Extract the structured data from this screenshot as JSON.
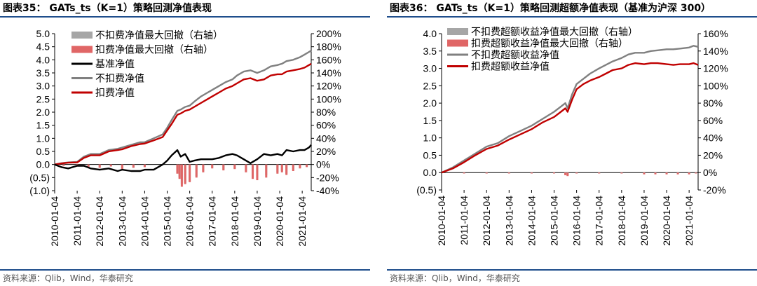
{
  "source": "资料来源：Qlib，Wind，华泰研究",
  "chart_data": [
    {
      "type": "line",
      "title": "图表35：  GATs_ts（K=1）策略回测净值表现",
      "x_ticks": [
        "2010-01-04",
        "2011-01-04",
        "2012-01-04",
        "2013-01-04",
        "2014-01-04",
        "2015-01-04",
        "2016-01-04",
        "2017-01-04",
        "2018-01-04",
        "2019-01-04",
        "2020-01-04",
        "2021-01-04"
      ],
      "x_range": [
        2010.0,
        2021.4
      ],
      "left_axis": {
        "range": [
          -1.0,
          5.0
        ],
        "ticks": [
          "(1.0)",
          "(0.5)",
          "0.0",
          "0.5",
          "1.0",
          "1.5",
          "2.0",
          "2.5",
          "3.0",
          "3.5",
          "4.0",
          "4.5",
          "5.0"
        ],
        "tick_values": [
          -1.0,
          -0.5,
          0.0,
          0.5,
          1.0,
          1.5,
          2.0,
          2.5,
          3.0,
          3.5,
          4.0,
          4.5,
          5.0
        ]
      },
      "right_axis": {
        "range": [
          -0.4,
          2.0
        ],
        "ticks": [
          "-40%",
          "-20%",
          "0%",
          "20%",
          "40%",
          "60%",
          "80%",
          "100%",
          "120%",
          "140%",
          "160%",
          "180%",
          "200%"
        ],
        "tick_values": [
          -0.4,
          -0.2,
          0.0,
          0.2,
          0.4,
          0.6,
          0.8,
          1.0,
          1.2,
          1.4,
          1.6,
          1.8,
          2.0
        ]
      },
      "legend": [
        "不扣费净值最大回撤（右轴）",
        "扣费净值最大回撤（右轴）",
        "基准净值",
        "不扣费净值",
        "扣费净值"
      ],
      "series": [
        {
          "name": "不扣费净值",
          "axis": "left",
          "color": "#808080",
          "x": [
            2010.0,
            2010.3,
            2010.6,
            2011.0,
            2011.3,
            2011.6,
            2012.0,
            2012.4,
            2012.8,
            2013.0,
            2013.4,
            2013.8,
            2014.0,
            2014.4,
            2014.8,
            2015.0,
            2015.2,
            2015.45,
            2015.6,
            2015.8,
            2016.0,
            2016.2,
            2016.5,
            2016.8,
            2017.0,
            2017.3,
            2017.6,
            2017.9,
            2018.1,
            2018.4,
            2018.7,
            2019.0,
            2019.3,
            2019.6,
            2019.9,
            2020.1,
            2020.3,
            2020.6,
            2020.9,
            2021.1,
            2021.3,
            2021.4
          ],
          "y": [
            0.0,
            0.05,
            0.08,
            0.1,
            0.3,
            0.4,
            0.4,
            0.55,
            0.6,
            0.65,
            0.75,
            0.85,
            0.85,
            1.0,
            1.15,
            1.4,
            1.7,
            2.05,
            2.1,
            2.2,
            2.25,
            2.4,
            2.6,
            2.75,
            2.85,
            3.0,
            3.15,
            3.25,
            3.4,
            3.55,
            3.6,
            3.5,
            3.6,
            3.75,
            3.8,
            3.85,
            3.95,
            4.0,
            4.1,
            4.2,
            4.3,
            4.35
          ]
        },
        {
          "name": "扣费净值",
          "axis": "left",
          "color": "#c00000",
          "x": [
            2010.0,
            2010.3,
            2010.6,
            2011.0,
            2011.3,
            2011.6,
            2012.0,
            2012.4,
            2012.8,
            2013.0,
            2013.4,
            2013.8,
            2014.0,
            2014.4,
            2014.8,
            2015.0,
            2015.2,
            2015.45,
            2015.6,
            2015.8,
            2016.0,
            2016.2,
            2016.5,
            2016.8,
            2017.0,
            2017.3,
            2017.6,
            2017.9,
            2018.1,
            2018.4,
            2018.7,
            2019.0,
            2019.3,
            2019.6,
            2019.9,
            2020.1,
            2020.3,
            2020.6,
            2020.9,
            2021.1,
            2021.3,
            2021.4
          ],
          "y": [
            0.0,
            0.04,
            0.07,
            0.08,
            0.25,
            0.35,
            0.35,
            0.5,
            0.55,
            0.58,
            0.7,
            0.78,
            0.8,
            0.92,
            1.05,
            1.3,
            1.55,
            1.9,
            1.95,
            2.05,
            2.1,
            2.2,
            2.35,
            2.5,
            2.6,
            2.75,
            2.9,
            3.0,
            3.1,
            3.25,
            3.3,
            3.2,
            3.25,
            3.4,
            3.45,
            3.45,
            3.55,
            3.6,
            3.65,
            3.7,
            3.8,
            3.85
          ]
        },
        {
          "name": "基准净值",
          "axis": "left",
          "color": "#000000",
          "x": [
            2010.0,
            2010.3,
            2010.6,
            2011.0,
            2011.3,
            2011.6,
            2012.0,
            2012.4,
            2012.8,
            2013.0,
            2013.4,
            2013.8,
            2014.0,
            2014.4,
            2014.8,
            2015.0,
            2015.2,
            2015.45,
            2015.6,
            2015.8,
            2016.0,
            2016.2,
            2016.5,
            2016.8,
            2017.0,
            2017.3,
            2017.6,
            2017.9,
            2018.1,
            2018.4,
            2018.7,
            2019.0,
            2019.3,
            2019.6,
            2019.9,
            2020.1,
            2020.3,
            2020.6,
            2020.9,
            2021.1,
            2021.3,
            2021.4
          ],
          "y": [
            0.0,
            -0.1,
            -0.15,
            -0.05,
            -0.05,
            -0.15,
            -0.2,
            -0.15,
            -0.25,
            -0.2,
            -0.25,
            -0.25,
            -0.2,
            -0.2,
            0.0,
            0.15,
            0.35,
            0.55,
            0.3,
            0.4,
            0.1,
            0.15,
            0.2,
            0.2,
            0.2,
            0.25,
            0.35,
            0.4,
            0.35,
            0.2,
            0.05,
            0.2,
            0.4,
            0.35,
            0.4,
            0.35,
            0.55,
            0.5,
            0.55,
            0.55,
            0.65,
            0.75
          ]
        },
        {
          "name": "不扣费净值最大回撤（右轴）",
          "axis": "right",
          "type": "bar",
          "color": "#a6a6a6",
          "x": [
            2010.4,
            2011.0,
            2011.5,
            2012.0,
            2012.5,
            2013.0,
            2013.5,
            2014.0,
            2015.45,
            2015.55,
            2015.65,
            2015.8,
            2016.0,
            2016.3,
            2016.6,
            2017.0,
            2017.5,
            2018.0,
            2018.5,
            2018.8,
            2019.0,
            2019.4,
            2019.9,
            2020.1,
            2020.3,
            2020.6,
            2020.9,
            2021.2
          ],
          "y": [
            -0.02,
            -0.03,
            -0.04,
            -0.05,
            -0.03,
            -0.06,
            -0.05,
            -0.04,
            -0.12,
            -0.2,
            -0.3,
            -0.28,
            -0.25,
            -0.18,
            -0.1,
            -0.05,
            -0.08,
            -0.06,
            -0.1,
            -0.18,
            -0.2,
            -0.16,
            -0.12,
            -0.1,
            -0.14,
            -0.08,
            -0.05,
            -0.03
          ]
        },
        {
          "name": "扣费净值最大回撤（右轴）",
          "axis": "right",
          "type": "bar",
          "color": "#e06666",
          "x": [
            2010.4,
            2011.0,
            2011.5,
            2012.0,
            2012.5,
            2013.0,
            2013.5,
            2014.0,
            2015.45,
            2015.55,
            2015.65,
            2015.8,
            2016.0,
            2016.3,
            2016.6,
            2017.0,
            2017.5,
            2018.0,
            2018.5,
            2018.8,
            2019.0,
            2019.4,
            2019.9,
            2020.1,
            2020.3,
            2020.6,
            2020.9,
            2021.2
          ],
          "y": [
            -0.02,
            -0.03,
            -0.04,
            -0.05,
            -0.03,
            -0.07,
            -0.05,
            -0.04,
            -0.14,
            -0.22,
            -0.34,
            -0.3,
            -0.27,
            -0.2,
            -0.12,
            -0.06,
            -0.09,
            -0.07,
            -0.12,
            -0.22,
            -0.24,
            -0.2,
            -0.14,
            -0.12,
            -0.16,
            -0.1,
            -0.06,
            -0.04
          ]
        }
      ]
    },
    {
      "type": "line",
      "title": "图表36：  GATs_ts（K=1）策略回测超额净值表现（基准为沪深 300）",
      "x_ticks": [
        "2010-01-04",
        "2011-01-04",
        "2012-01-04",
        "2013-01-04",
        "2014-01-04",
        "2015-01-04",
        "2016-01-04",
        "2017-01-04",
        "2018-01-04",
        "2019-01-04",
        "2020-01-04",
        "2021-01-04"
      ],
      "x_range": [
        2010.0,
        2021.4
      ],
      "left_axis": {
        "range": [
          -0.5,
          4.0
        ],
        "ticks": [
          "(0.5)",
          "0.0",
          "0.5",
          "1.0",
          "1.5",
          "2.0",
          "2.5",
          "3.0",
          "3.5",
          "4.0"
        ],
        "tick_values": [
          -0.5,
          0.0,
          0.5,
          1.0,
          1.5,
          2.0,
          2.5,
          3.0,
          3.5,
          4.0
        ]
      },
      "right_axis": {
        "range": [
          -0.2,
          1.6
        ],
        "ticks": [
          "-20%",
          "0%",
          "20%",
          "40%",
          "60%",
          "80%",
          "100%",
          "120%",
          "140%",
          "160%"
        ],
        "tick_values": [
          -0.2,
          0.0,
          0.2,
          0.4,
          0.6,
          0.8,
          1.0,
          1.2,
          1.4,
          1.6
        ]
      },
      "legend": [
        "不扣费超额收益净值最大回撤（右轴）",
        "扣费超额收益净值最大回撤（右轴）",
        "不扣费超额收益净值",
        "扣费超额收益净值"
      ],
      "series": [
        {
          "name": "不扣费超额收益净值",
          "axis": "left",
          "color": "#808080",
          "x": [
            2010.0,
            2010.5,
            2011.0,
            2011.5,
            2012.0,
            2012.5,
            2013.0,
            2013.5,
            2014.0,
            2014.5,
            2015.0,
            2015.3,
            2015.5,
            2015.6,
            2015.8,
            2016.0,
            2016.3,
            2016.6,
            2017.0,
            2017.3,
            2017.6,
            2018.0,
            2018.3,
            2018.6,
            2019.0,
            2019.3,
            2019.6,
            2020.0,
            2020.3,
            2020.6,
            2021.0,
            2021.2,
            2021.4
          ],
          "y": [
            0.0,
            0.15,
            0.35,
            0.55,
            0.75,
            0.85,
            1.05,
            1.2,
            1.35,
            1.55,
            1.75,
            1.9,
            2.0,
            1.85,
            2.25,
            2.55,
            2.7,
            2.85,
            3.0,
            3.1,
            3.2,
            3.3,
            3.4,
            3.45,
            3.45,
            3.5,
            3.52,
            3.55,
            3.55,
            3.57,
            3.6,
            3.65,
            3.62
          ]
        },
        {
          "name": "扣费超额收益净值",
          "axis": "left",
          "color": "#c00000",
          "x": [
            2010.0,
            2010.5,
            2011.0,
            2011.5,
            2012.0,
            2012.5,
            2013.0,
            2013.5,
            2014.0,
            2014.5,
            2015.0,
            2015.3,
            2015.5,
            2015.6,
            2015.8,
            2016.0,
            2016.3,
            2016.6,
            2017.0,
            2017.3,
            2017.6,
            2018.0,
            2018.3,
            2018.6,
            2019.0,
            2019.3,
            2019.6,
            2020.0,
            2020.3,
            2020.6,
            2021.0,
            2021.2,
            2021.4
          ],
          "y": [
            0.0,
            0.12,
            0.3,
            0.5,
            0.68,
            0.78,
            0.95,
            1.1,
            1.25,
            1.45,
            1.6,
            1.75,
            1.85,
            1.75,
            2.1,
            2.4,
            2.55,
            2.65,
            2.75,
            2.85,
            2.95,
            3.0,
            3.1,
            3.15,
            3.12,
            3.15,
            3.15,
            3.12,
            3.1,
            3.12,
            3.12,
            3.15,
            3.1
          ]
        },
        {
          "name": "不扣费超额收益净值最大回撤（右轴）",
          "axis": "right",
          "type": "bar",
          "color": "#a6a6a6",
          "x": [
            2011.0,
            2012.0,
            2013.0,
            2014.0,
            2015.0,
            2015.5,
            2015.6,
            2016.0,
            2017.0,
            2018.0,
            2019.0,
            2019.5,
            2020.0,
            2020.5,
            2021.0,
            2021.3
          ],
          "y": [
            -0.01,
            -0.01,
            -0.01,
            -0.01,
            -0.01,
            -0.02,
            -0.03,
            -0.01,
            -0.01,
            -0.01,
            -0.01,
            -0.01,
            -0.01,
            -0.01,
            -0.01,
            -0.01
          ]
        },
        {
          "name": "扣费超额收益净值最大回撤（右轴）",
          "axis": "right",
          "type": "bar",
          "color": "#e06666",
          "x": [
            2011.0,
            2012.0,
            2013.0,
            2014.0,
            2015.0,
            2015.5,
            2015.6,
            2016.0,
            2017.0,
            2018.0,
            2019.0,
            2019.5,
            2020.0,
            2020.5,
            2021.0,
            2021.3
          ],
          "y": [
            -0.01,
            -0.01,
            -0.01,
            -0.01,
            -0.01,
            -0.03,
            -0.04,
            -0.01,
            -0.01,
            -0.01,
            -0.02,
            -0.02,
            -0.02,
            -0.02,
            -0.02,
            -0.01
          ]
        }
      ]
    }
  ]
}
